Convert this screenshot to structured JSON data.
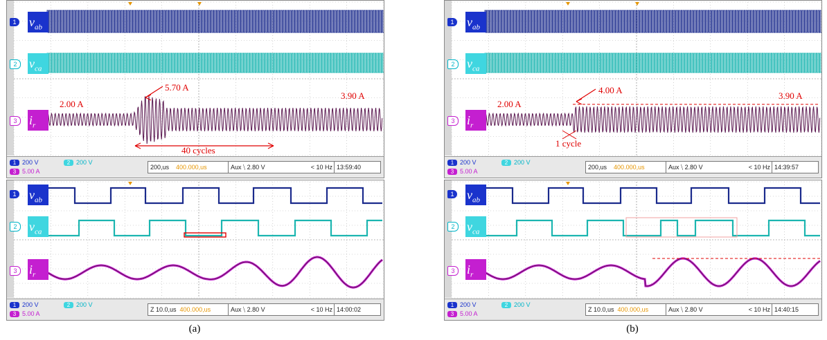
{
  "panels": [
    {
      "caption": "(a)",
      "top": {
        "ch1": {
          "num": "1",
          "name": "v",
          "sub": "ab",
          "scale": "200 V"
        },
        "ch2": {
          "num": "2",
          "name": "v",
          "sub": "ca",
          "scale": "200 V"
        },
        "ch3": {
          "num": "3",
          "name": "i",
          "sub": "r",
          "scale": "5.00 A"
        },
        "timebase": "200,us",
        "delay": "400.000,us",
        "trigger": "Aux  ⧹ 2.80 V",
        "freq": "< 10 Hz",
        "clock": "13:59:40",
        "annotations": {
          "before": "2.00 A",
          "peak": "5.70 A",
          "after": "3.90 A",
          "span": "40 cycles"
        }
      },
      "bottom": {
        "ch1": {
          "num": "1",
          "name": "v",
          "sub": "ab",
          "scale": "200 V"
        },
        "ch2": {
          "num": "2",
          "name": "v",
          "sub": "ca",
          "scale": "200 V"
        },
        "ch3": {
          "num": "3",
          "name": "i",
          "sub": "r",
          "scale": "5.00 A"
        },
        "timebase": "Z 10.0,us",
        "delay": "400.000,us",
        "trigger": "Aux  ⧹ 2.80 V",
        "freq": "< 10 Hz",
        "clock": "14:00:02"
      }
    },
    {
      "caption": "(b)",
      "top": {
        "ch1": {
          "num": "1",
          "name": "v",
          "sub": "ab",
          "scale": "200 V"
        },
        "ch2": {
          "num": "2",
          "name": "v",
          "sub": "ca",
          "scale": "200 V"
        },
        "ch3": {
          "num": "3",
          "name": "i",
          "sub": "r",
          "scale": "5.00 A"
        },
        "timebase": "200,us",
        "delay": "400.000,us",
        "trigger": "Aux  ⧹ 2.80 V",
        "freq": "< 10 Hz",
        "clock": "14:39:57",
        "annotations": {
          "before": "2.00 A",
          "peak": "4.00 A",
          "after": "3.90 A",
          "span": "1 cycle"
        }
      },
      "bottom": {
        "ch1": {
          "num": "1",
          "name": "v",
          "sub": "ab",
          "scale": "200 V"
        },
        "ch2": {
          "num": "2",
          "name": "v",
          "sub": "ca",
          "scale": "200 V"
        },
        "ch3": {
          "num": "3",
          "name": "i",
          "sub": "r",
          "scale": "5.00 A"
        },
        "timebase": "Z 10.0,us",
        "delay": "400.000,us",
        "trigger": "Aux  ⧹ 2.80 V",
        "freq": "< 10 Hz",
        "clock": "14:40:15"
      }
    }
  ],
  "colors": {
    "ch1": "#1a2a8c",
    "ch2": "#1bb5b0",
    "ch3": "#5a1850",
    "ch3fill": "#c41fd0",
    "annotation": "#e00000",
    "grid": "#b0b0b0"
  }
}
